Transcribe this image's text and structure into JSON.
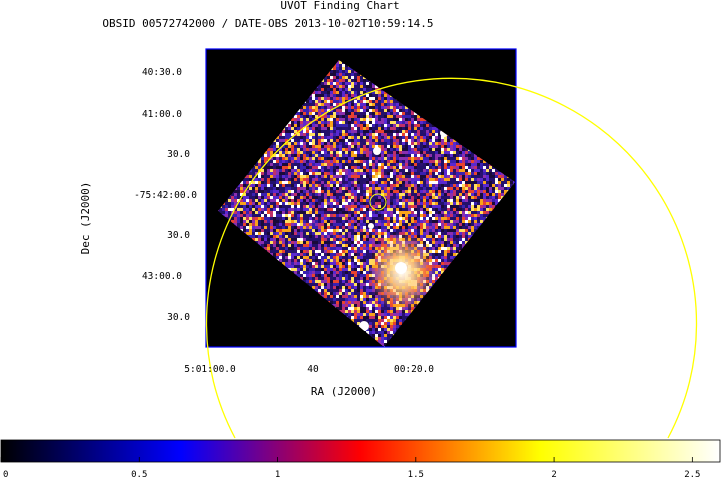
{
  "chart_data": {
    "type": "heatmap",
    "title": "UVOT Finding Chart",
    "subtitle": "OBSID 00572742000 / DATE-OBS 2013-10-02T10:59:14.5",
    "xlabel": "RA (J2000)",
    "ylabel": "Dec (J2000)",
    "x_ticks": [
      "5:01:00.0",
      "40",
      "00:20.0"
    ],
    "y_ticks": [
      "40:30.0",
      "41:00.0",
      "30.0",
      "-75:42:00.0",
      "30.0",
      "43:00.0",
      "30.0"
    ],
    "colorbar": {
      "range": [
        0,
        2.6
      ],
      "ticks": [
        0,
        0.5,
        1,
        1.5,
        2,
        2.5
      ],
      "tick_labels": [
        "0",
        "0.5",
        "1",
        "1.5",
        "2",
        "2.5"
      ],
      "colormap": [
        "#000000",
        "#0000ff",
        "#ff0000",
        "#ffff00",
        "#ffffff"
      ]
    },
    "colors": {
      "image_background": "#000000",
      "frame": "#0000ff",
      "region_circle": "#ffff00",
      "source_circle": "#ffff00",
      "pixel_palette": [
        "#1a0a3a",
        "#2a1170",
        "#3a20b0",
        "#5a28d0",
        "#8a2fb0",
        "#c0306a",
        "#e8432e",
        "#f8a21a",
        "#ffe060",
        "#ffffff"
      ]
    }
  }
}
